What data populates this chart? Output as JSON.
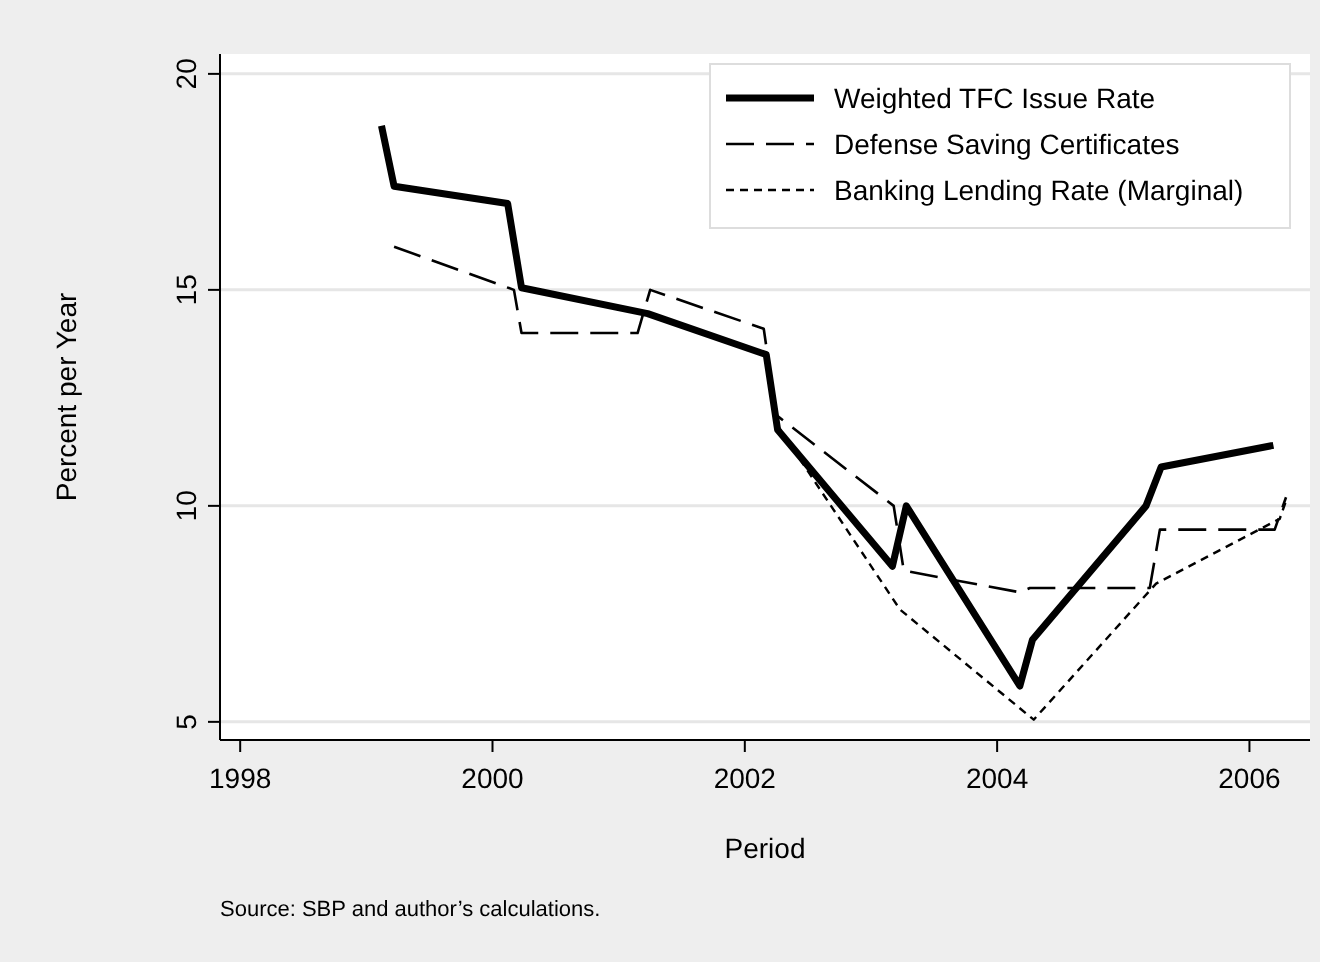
{
  "chart_data": {
    "type": "line",
    "xlabel": "Period",
    "ylabel": "Percent per Year",
    "annotations": [
      "Source: SBP and author’s calculations."
    ],
    "xlim": [
      1997.84,
      2006.48
    ],
    "xticks": [
      1998,
      2000,
      2002,
      2004,
      2006
    ],
    "ylim": [
      4.58,
      20.46
    ],
    "yticks": [
      5,
      10,
      15,
      20
    ],
    "grid": "y",
    "legend": "top right",
    "series": [
      {
        "name": "Weighted TFC Issue Rate",
        "color": "#000000",
        "line_style": "solid",
        "x": [
          1999.12,
          1999.22,
          2000.12,
          2000.23,
          2001.23,
          2002.17,
          2002.26,
          2003.17,
          2003.28,
          2004.18,
          2004.28,
          2005.18,
          2005.3,
          2006.19
        ],
        "values": [
          18.8,
          17.4,
          17.0,
          15.05,
          14.45,
          13.5,
          11.76,
          8.6,
          10.0,
          5.83,
          6.9,
          10.0,
          10.9,
          11.4
        ]
      },
      {
        "name": "Defense Saving Certificates",
        "color": "#000000",
        "line_style": "dashed",
        "x": [
          1999.22,
          2000.17,
          2000.23,
          2001.15,
          2001.25,
          2002.15,
          2002.25,
          2003.18,
          2003.26,
          2004.18,
          2004.26,
          2005.21,
          2005.29,
          2006.2,
          2006.29
        ],
        "values": [
          16.0,
          15.0,
          14.0,
          14.0,
          15.0,
          14.1,
          12.1,
          10.0,
          8.5,
          8.0,
          8.1,
          8.1,
          9.45,
          9.45,
          10.2
        ]
      },
      {
        "name": "Banking Lending Rate (Marginal)",
        "color": "#000000",
        "line_style": "dotted",
        "x": [
          2002.25,
          2003.23,
          2004.29,
          2005.26,
          2006.24,
          2006.3
        ],
        "values": [
          11.9,
          7.6,
          5.05,
          8.2,
          9.7,
          10.2
        ]
      }
    ]
  }
}
